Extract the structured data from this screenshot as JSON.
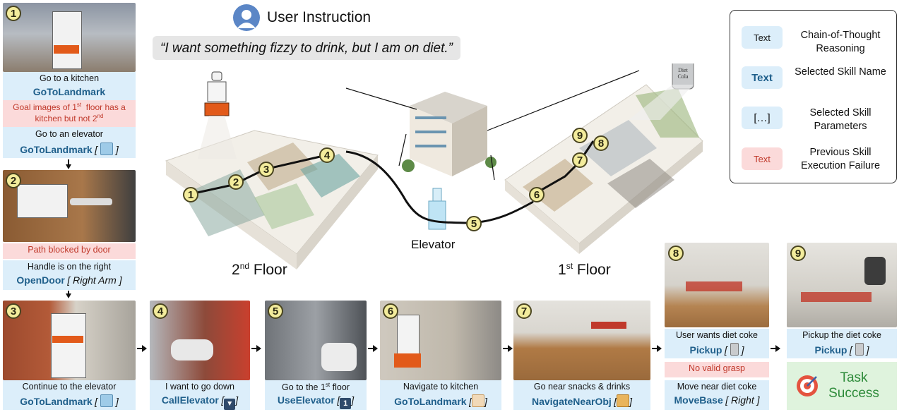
{
  "header": {
    "title": "User Instruction",
    "instruction": "“I want something fizzy to drink, but I am on diet.”"
  },
  "legend": [
    {
      "chip": "Text",
      "label": "Chain-of-Thought Reasoning",
      "style": "cot"
    },
    {
      "chip": "Text",
      "label": "Selected Skill Name",
      "style": "skill"
    },
    {
      "chip": "[…]",
      "label": "Selected Skill Parameters",
      "style": "param"
    },
    {
      "chip": "Text",
      "label": "Previous Skill Execution Failure",
      "style": "fail"
    }
  ],
  "map": {
    "floor2": "2nd Floor",
    "floor2_sup": "nd",
    "floor1": "1st Floor",
    "floor1_sup": "st",
    "elevator": "Elevator",
    "can_label": "Diet Cola"
  },
  "steps": {
    "s1": {
      "n": "1",
      "cot": "Go to a kitchen",
      "skill": "GoToLandmark",
      "fail": "Goal images of 1st floor has a kitchen but not 2nd",
      "cot2": "Go to an elevator",
      "skill2": "GoToLandmark"
    },
    "s2": {
      "n": "2",
      "fail": "Path blocked by door",
      "cot": "Handle is on the right",
      "skill": "OpenDoor",
      "param": "Right Arm"
    },
    "s3": {
      "n": "3",
      "cot": "Continue to the elevator",
      "skill": "GoToLandmark"
    },
    "s4": {
      "n": "4",
      "cot": "I want to go down",
      "skill": "CallElevator"
    },
    "s5": {
      "n": "5",
      "cot": "Go to the 1st floor",
      "skill": "UseElevator",
      "param_icon": "1"
    },
    "s6": {
      "n": "6",
      "cot": "Navigate to kitchen",
      "skill": "GoToLandmark"
    },
    "s7": {
      "n": "7",
      "cot": "Go near snacks & drinks",
      "skill": "NavigateNearObj"
    },
    "s8": {
      "n": "8",
      "cot": "User wants diet coke",
      "skill": "Pickup",
      "fail": "No valid grasp",
      "cot2": "Move near diet coke",
      "skill2": "MoveBase",
      "param2": "Right"
    },
    "s9": {
      "n": "9",
      "cot": "Pickup the diet coke",
      "skill": "Pickup",
      "result": "Task Success"
    }
  },
  "colors": {
    "cot_bg": "#dceefa",
    "fail_bg": "#fbdada",
    "fail_text": "#c0392b",
    "skill_text": "#1f5f8b",
    "badge": "#f3ec9c",
    "success_bg": "#dff3dd",
    "success_text": "#2e8b3a"
  },
  "icons": [
    "user-icon",
    "elevator-landmark-icon",
    "elevator-down-icon",
    "floor-one-icon",
    "kitchen-icon",
    "snacks-icon",
    "can-icon",
    "target-icon",
    "robot-icon"
  ]
}
